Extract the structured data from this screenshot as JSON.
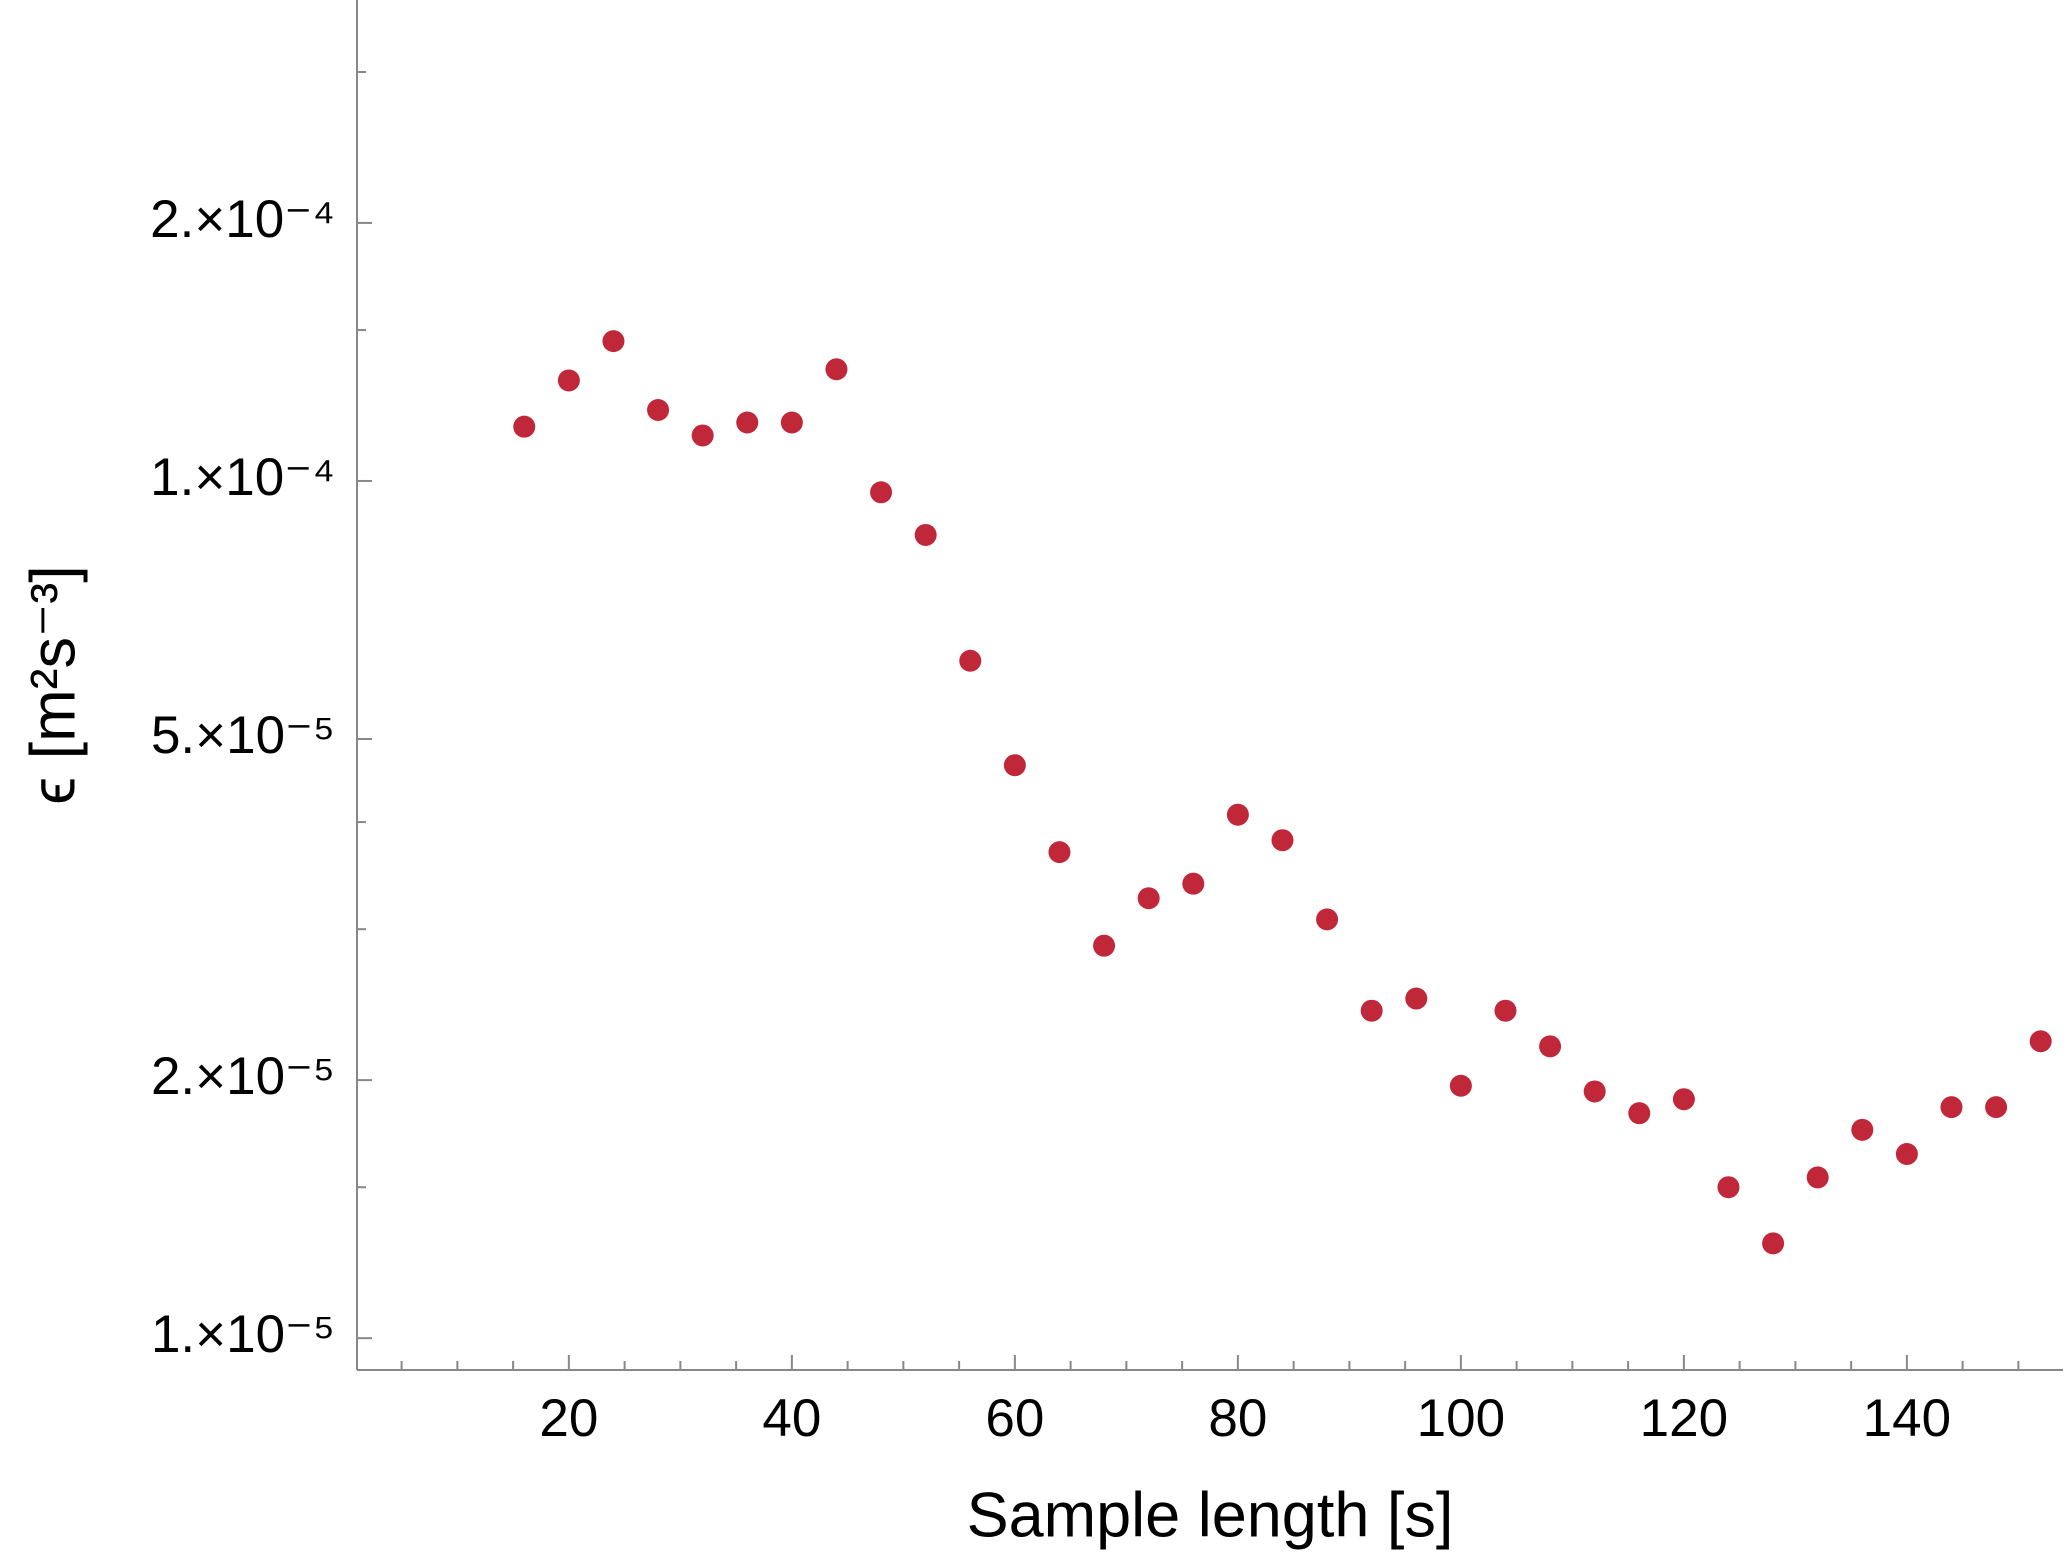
{
  "chart_data": {
    "type": "scatter",
    "x_label": "Sample length [s]",
    "y_label": "ϵ [m²s⁻³]",
    "color": "#c0283a",
    "log_y": true,
    "x": [
      16,
      20,
      24,
      28,
      32,
      36,
      40,
      44,
      48,
      52,
      56,
      60,
      64,
      68,
      72,
      76,
      80,
      84,
      88,
      92,
      96,
      100,
      104,
      108,
      112,
      116,
      120,
      124,
      128,
      132,
      136,
      140,
      144,
      148,
      152
    ],
    "values": [
      0.0001157,
      0.000131,
      0.0001456,
      0.000121,
      0.000113,
      0.000117,
      0.000117,
      0.000135,
      9.7e-05,
      8.65e-05,
      6.17e-05,
      4.66e-05,
      3.69e-05,
      2.87e-05,
      3.26e-05,
      3.39e-05,
      4.08e-05,
      3.81e-05,
      3.08e-05,
      2.41e-05,
      2.49e-05,
      1.97e-05,
      2.41e-05,
      2.19e-05,
      1.94e-05,
      1.83e-05,
      1.9e-05,
      1.5e-05,
      1.29e-05,
      1.54e-05,
      1.75e-05,
      1.64e-05,
      1.86e-05,
      1.86e-05,
      2.22e-05
    ],
    "xlim": [
      1,
      154
    ],
    "ylim": [
      9.18e-06,
      0.000364
    ],
    "xticks": [
      20,
      40,
      60,
      80,
      100,
      120,
      140
    ],
    "xminor": [
      5,
      10,
      15,
      25,
      30,
      35,
      45,
      50,
      55,
      65,
      70,
      75,
      85,
      90,
      95,
      105,
      110,
      115,
      125,
      130,
      135,
      145,
      150
    ],
    "yticks": [
      {
        "value": 1e-05,
        "label": "1.×10⁻⁵"
      },
      {
        "value": 2e-05,
        "label": "2.×10⁻⁵"
      },
      {
        "value": 5e-05,
        "label": "5.×10⁻⁵"
      },
      {
        "value": 0.0001,
        "label": "1.×10⁻⁴"
      },
      {
        "value": 0.0002,
        "label": "2.×10⁻⁴"
      }
    ],
    "yminor": [
      1.5e-05,
      3e-05,
      4e-05,
      0.00015,
      0.0003
    ]
  }
}
